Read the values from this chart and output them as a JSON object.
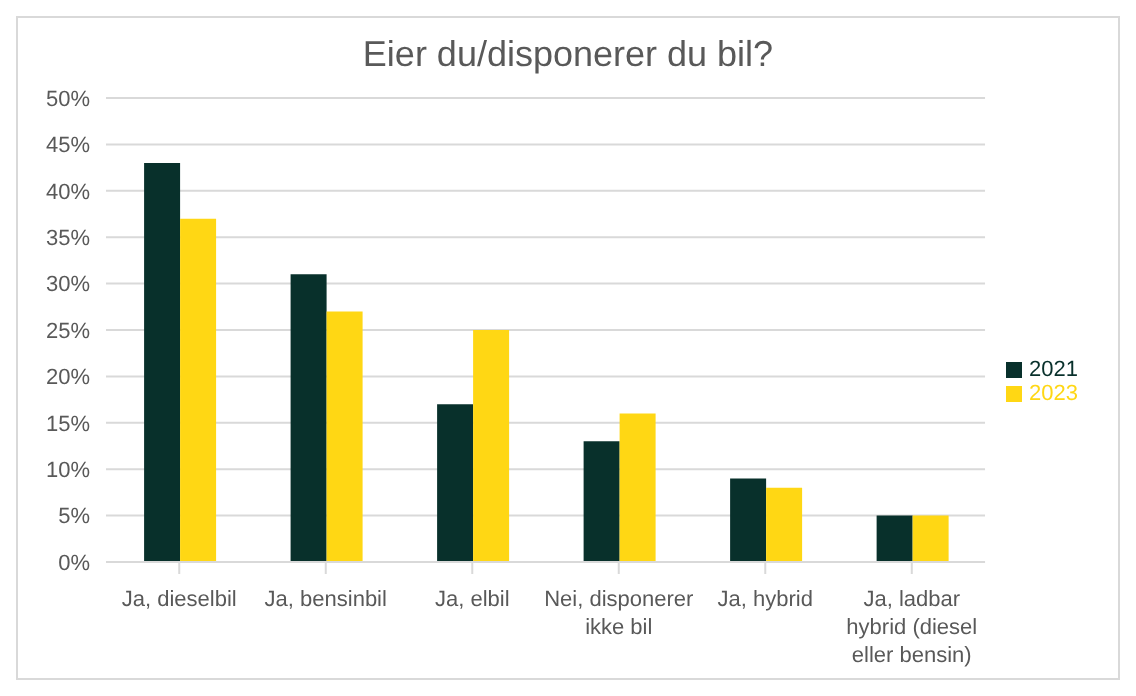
{
  "chart_data": {
    "type": "bar",
    "title": "Eier du/disponerer du bil?",
    "categories": [
      "Ja, dieselbil",
      "Ja, bensinbil",
      "Ja, elbil",
      "Nei, disponerer ikke bil",
      "Ja, hybrid",
      "Ja, ladbar hybrid (diesel eller bensin)"
    ],
    "series": [
      {
        "name": "2021",
        "color": "#08302b",
        "values": [
          43,
          31,
          17,
          13,
          9,
          5
        ]
      },
      {
        "name": "2023",
        "color": "#ffd714",
        "values": [
          37,
          27,
          25,
          16,
          8,
          5
        ]
      }
    ],
    "ylim": [
      0,
      50
    ],
    "yticks": [
      {
        "value": 0,
        "label": "0%"
      },
      {
        "value": 5,
        "label": "5%"
      },
      {
        "value": 10,
        "label": "10%"
      },
      {
        "value": 15,
        "label": "15%"
      },
      {
        "value": 20,
        "label": "20%"
      },
      {
        "value": 25,
        "label": "25%"
      },
      {
        "value": 30,
        "label": "30%"
      },
      {
        "value": 35,
        "label": "35%"
      },
      {
        "value": 40,
        "label": "40%"
      },
      {
        "value": 45,
        "label": "45%"
      },
      {
        "value": 50,
        "label": "50%"
      }
    ],
    "grid": "y",
    "legend": "right"
  }
}
